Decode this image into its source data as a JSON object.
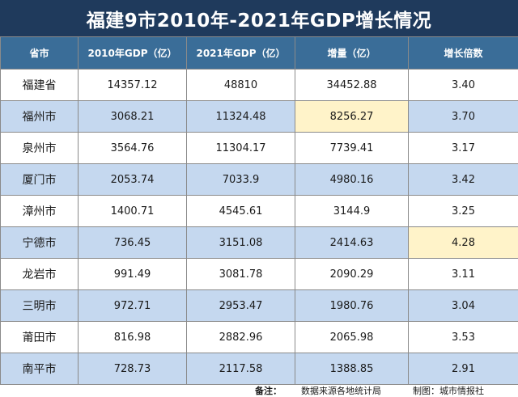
{
  "title": "福建9市2010年-2021年GDP增长情况",
  "headers": [
    "省市",
    "2010年GDP（亿）",
    "2021年GDP（亿）",
    "增量（亿）",
    "增长倍数"
  ],
  "rows": [
    [
      "福建省",
      "14357.12",
      "48810",
      "34452.88",
      "3.40"
    ],
    [
      "福州市",
      "3068.21",
      "11324.48",
      "8256.27",
      "3.70"
    ],
    [
      "泉州市",
      "3564.76",
      "11304.17",
      "7739.41",
      "3.17"
    ],
    [
      "厦门市",
      "2053.74",
      "7033.9",
      "4980.16",
      "3.42"
    ],
    [
      "漳州市",
      "1400.71",
      "4545.61",
      "3144.9",
      "3.25"
    ],
    [
      "宁德市",
      "736.45",
      "3151.08",
      "2414.63",
      "4.28"
    ],
    [
      "龙岩市",
      "991.49",
      "3081.78",
      "2090.29",
      "3.11"
    ],
    [
      "三明市",
      "972.71",
      "2953.47",
      "1980.76",
      "3.04"
    ],
    [
      "莆田市",
      "816.98",
      "2882.96",
      "2065.98",
      "3.53"
    ],
    [
      "南平市",
      "728.73",
      "2117.58",
      "1388.85",
      "2.91"
    ]
  ],
  "highlights": [
    [
      1,
      3
    ],
    [
      5,
      4
    ]
  ],
  "colors": {
    "title_bg": "#1f3a5c",
    "header_bg": "#3a6d98",
    "row_alt_bg": "#c5d8ef",
    "highlight_bg": "#fff3c9"
  },
  "footer": {
    "note_label": "备注：",
    "source": "数据来源各地统计局",
    "credit": "制图：城市情报社"
  }
}
